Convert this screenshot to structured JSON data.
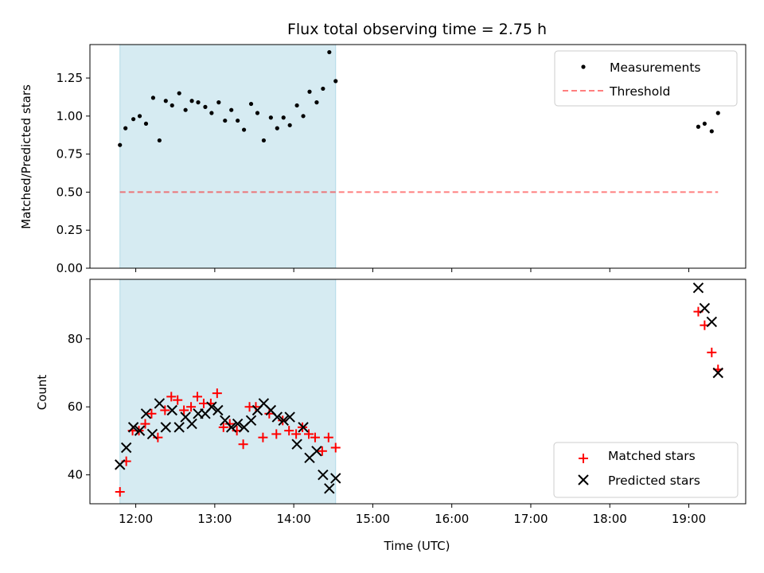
{
  "chart_data": {
    "title": "Flux total observing time = 2.75 h",
    "xlabel": "Time (UTC)",
    "x_ticks": [
      "12:00",
      "13:00",
      "14:00",
      "15:00",
      "16:00",
      "17:00",
      "18:00",
      "19:00"
    ],
    "x_tick_hours": [
      12,
      13,
      14,
      15,
      16,
      17,
      18,
      19
    ],
    "xlim": [
      11.42,
      19.72
    ],
    "shaded_span": [
      11.8,
      14.53
    ],
    "colors": {
      "shade": "#add8e6",
      "threshold": "#ff0000",
      "matched": "#ff0000",
      "predicted": "#000000",
      "measurements": "#000000"
    },
    "panels": [
      {
        "type": "scatter",
        "ylabel": "Matched/Predicted stars",
        "ylim": [
          0,
          1.47
        ],
        "y_ticks": [
          "0.00",
          "0.25",
          "0.50",
          "0.75",
          "1.00",
          "1.25"
        ],
        "y_tick_values": [
          0,
          0.25,
          0.5,
          0.75,
          1.0,
          1.25
        ],
        "legend_position": "top-right",
        "legend": [
          "Measurements",
          "Threshold"
        ],
        "threshold": {
          "name": "Threshold",
          "value": 0.5,
          "x_range": [
            11.8,
            19.37
          ]
        },
        "series": [
          {
            "name": "Measurements",
            "x": [
              11.8,
              11.87,
              11.97,
              12.05,
              12.13,
              12.22,
              12.3,
              12.38,
              12.46,
              12.55,
              12.63,
              12.71,
              12.79,
              12.88,
              12.96,
              13.05,
              13.13,
              13.21,
              13.29,
              13.37,
              13.46,
              13.54,
              13.62,
              13.71,
              13.79,
              13.87,
              13.95,
              14.04,
              14.12,
              14.2,
              14.29,
              14.37,
              14.45,
              14.53,
              19.12,
              19.2,
              19.29,
              19.37
            ],
            "y": [
              0.81,
              0.92,
              0.98,
              1.0,
              0.95,
              1.12,
              0.84,
              1.1,
              1.07,
              1.15,
              1.04,
              1.1,
              1.09,
              1.06,
              1.02,
              1.09,
              0.97,
              1.04,
              0.97,
              0.91,
              1.08,
              1.02,
              0.84,
              0.99,
              0.92,
              0.99,
              0.94,
              1.07,
              1.0,
              1.16,
              1.09,
              1.18,
              1.42,
              1.23,
              0.93,
              0.95,
              0.9,
              1.02
            ]
          }
        ]
      },
      {
        "type": "scatter",
        "ylabel": "Count",
        "ylim": [
          31.5,
          97.5
        ],
        "y_ticks": [
          "40",
          "60",
          "80"
        ],
        "y_tick_values": [
          40,
          60,
          80
        ],
        "legend_position": "bottom-right",
        "legend": [
          "Matched stars",
          "Predicted stars"
        ],
        "series": [
          {
            "name": "Matched stars",
            "marker": "plus",
            "x": [
              11.8,
              11.88,
              11.96,
              12.04,
              12.12,
              12.2,
              12.28,
              12.37,
              12.45,
              12.53,
              12.61,
              12.7,
              12.78,
              12.86,
              12.95,
              13.03,
              13.11,
              13.19,
              13.28,
              13.36,
              13.44,
              13.52,
              13.61,
              13.69,
              13.78,
              13.86,
              13.94,
              14.03,
              14.11,
              14.19,
              14.27,
              14.36,
              14.44,
              14.53,
              19.12,
              19.2,
              19.29,
              19.37
            ],
            "y": [
              35,
              44,
              53,
              53,
              55,
              58,
              51,
              59,
              63,
              62,
              59,
              60,
              63,
              61,
              61,
              64,
              54,
              55,
              53,
              49,
              60,
              60,
              51,
              58,
              52,
              56,
              53,
              52,
              54,
              52,
              51,
              47,
              51,
              48,
              88,
              84,
              76,
              71
            ]
          },
          {
            "name": "Predicted stars",
            "marker": "x",
            "x": [
              11.8,
              11.88,
              11.97,
              12.05,
              12.13,
              12.21,
              12.3,
              12.38,
              12.46,
              12.55,
              12.63,
              12.71,
              12.79,
              12.88,
              12.96,
              13.04,
              13.13,
              13.21,
              13.29,
              13.37,
              13.46,
              13.54,
              13.62,
              13.71,
              13.79,
              13.87,
              13.95,
              14.04,
              14.12,
              14.2,
              14.29,
              14.37,
              14.45,
              14.53,
              19.12,
              19.2,
              19.29,
              19.37
            ],
            "y": [
              43,
              48,
              54,
              53,
              58,
              52,
              61,
              54,
              59,
              54,
              57,
              55,
              58,
              58,
              60,
              59,
              56,
              54,
              55,
              54,
              56,
              59,
              61,
              59,
              57,
              56,
              57,
              49,
              54,
              45,
              47,
              40,
              36,
              39,
              95,
              89,
              85,
              70
            ]
          }
        ]
      }
    ]
  }
}
